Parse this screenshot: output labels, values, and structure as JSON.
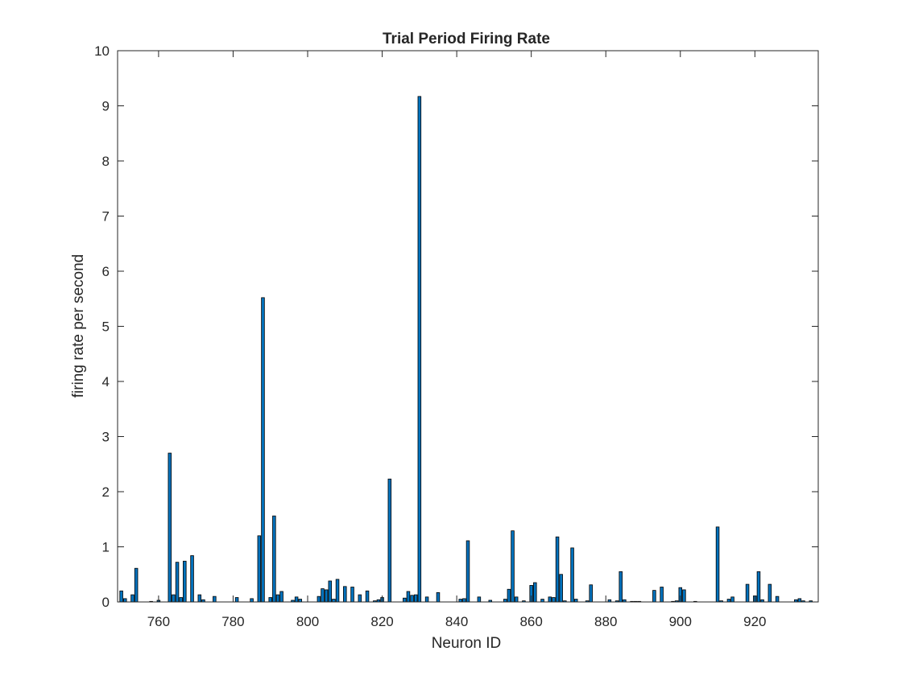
{
  "chart_data": {
    "type": "bar",
    "title": "Trial Period Firing Rate",
    "xlabel": "Neuron ID",
    "ylabel": "firing rate per second",
    "xlim": [
      749,
      937
    ],
    "ylim": [
      0,
      10
    ],
    "x_ticks": [
      760,
      780,
      800,
      820,
      840,
      860,
      880,
      900,
      920
    ],
    "y_ticks": [
      0,
      1,
      2,
      3,
      4,
      5,
      6,
      7,
      8,
      9,
      10
    ],
    "grid": false,
    "legend": "none",
    "bar_color": "#0072BD",
    "x": [
      750,
      751,
      753,
      754,
      758,
      760,
      763,
      764,
      765,
      766,
      767,
      769,
      771,
      772,
      775,
      781,
      785,
      787,
      788,
      790,
      791,
      792,
      793,
      796,
      797,
      798,
      803,
      804,
      805,
      806,
      807,
      808,
      810,
      812,
      814,
      816,
      818,
      819,
      820,
      822,
      826,
      827,
      828,
      829,
      830,
      832,
      835,
      841,
      842,
      843,
      846,
      849,
      853,
      854,
      855,
      856,
      858,
      860,
      861,
      863,
      865,
      866,
      867,
      868,
      869,
      871,
      872,
      875,
      876,
      881,
      883,
      884,
      885,
      887,
      888,
      889,
      893,
      895,
      898,
      899,
      900,
      901,
      904,
      910,
      911,
      913,
      914,
      918,
      920,
      921,
      922,
      924,
      926,
      931,
      932,
      933,
      935
    ],
    "values": [
      0.2,
      0.06,
      0.13,
      0.61,
      0.01,
      0.03,
      2.7,
      0.13,
      0.72,
      0.08,
      0.74,
      0.84,
      0.13,
      0.04,
      0.1,
      0.08,
      0.06,
      1.2,
      5.52,
      0.08,
      1.56,
      0.13,
      0.19,
      0.03,
      0.09,
      0.05,
      0.1,
      0.24,
      0.22,
      0.38,
      0.05,
      0.41,
      0.28,
      0.27,
      0.13,
      0.2,
      0.02,
      0.04,
      0.08,
      2.23,
      0.07,
      0.19,
      0.12,
      0.13,
      9.17,
      0.09,
      0.17,
      0.05,
      0.06,
      1.11,
      0.09,
      0.03,
      0.05,
      0.23,
      1.29,
      0.09,
      0.02,
      0.3,
      0.35,
      0.05,
      0.09,
      0.08,
      1.18,
      0.5,
      0.02,
      0.98,
      0.05,
      0.02,
      0.31,
      0.04,
      0.02,
      0.55,
      0.04,
      0.01,
      0.01,
      0.01,
      0.21,
      0.27,
      0.01,
      0.02,
      0.26,
      0.22,
      0.01,
      1.36,
      0.02,
      0.05,
      0.09,
      0.32,
      0.11,
      0.55,
      0.04,
      0.32,
      0.1,
      0.04,
      0.06,
      0.02,
      0.02
    ]
  }
}
